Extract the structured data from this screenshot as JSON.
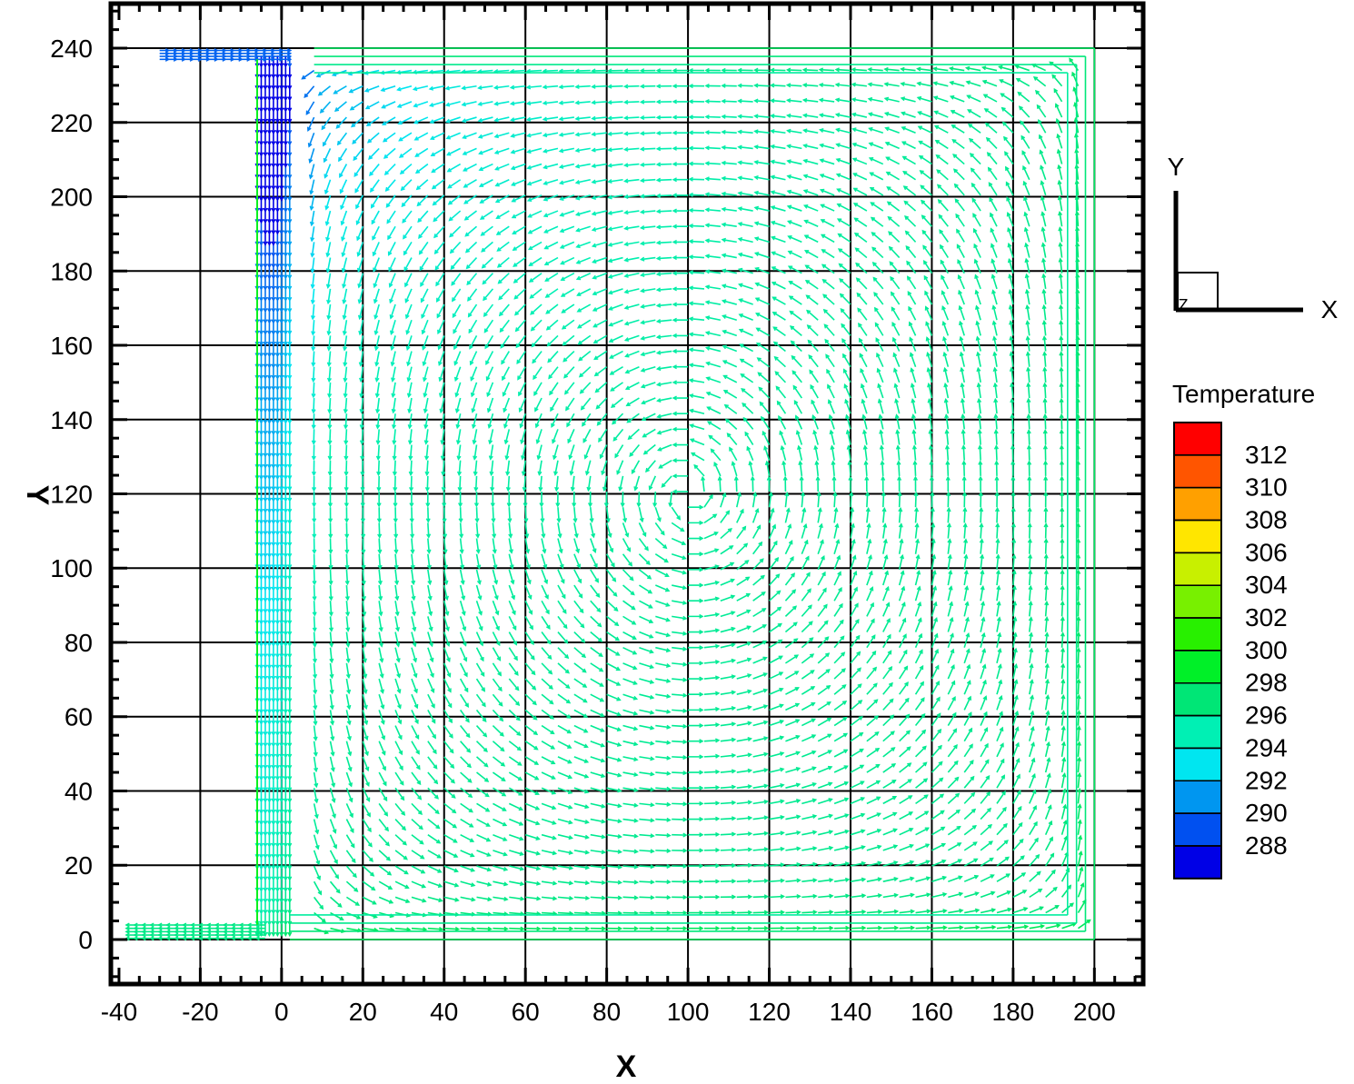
{
  "chart_data": {
    "type": "vector-field",
    "xlabel": "X",
    "ylabel": "Y",
    "xlim": [
      -42,
      212
    ],
    "ylim": [
      -12,
      252
    ],
    "grid": true,
    "x_ticks": [
      -40,
      -20,
      0,
      20,
      40,
      60,
      80,
      100,
      120,
      140,
      160,
      180,
      200
    ],
    "y_ticks": [
      0,
      20,
      40,
      60,
      80,
      100,
      120,
      140,
      160,
      180,
      200,
      220,
      240
    ],
    "x_tick_labels": [
      "-40",
      "-20",
      "0",
      "20",
      "40",
      "60",
      "80",
      "100",
      "120",
      "140",
      "160",
      "180",
      "200"
    ],
    "y_tick_labels": [
      "0",
      "20",
      "40",
      "60",
      "80",
      "100",
      "120",
      "140",
      "160",
      "180",
      "200",
      "220",
      "240"
    ],
    "domain_outline": [
      [
        -30,
        240
      ],
      [
        0,
        240
      ],
      [
        200,
        240
      ],
      [
        200,
        0
      ],
      [
        0,
        0
      ],
      [
        -36,
        0
      ]
    ],
    "inlet": {
      "x": [
        -30,
        0
      ],
      "y": [
        237,
        240
      ]
    },
    "outlet": {
      "x": [
        -36,
        0
      ],
      "y": [
        0,
        4
      ]
    },
    "flow_pattern": "clockwise-recirculation",
    "colorbar": {
      "title": "Temperature",
      "placement": "right",
      "levels": [
        {
          "value": 312,
          "color": "#ff0000"
        },
        {
          "value": 310,
          "color": "#ff5500"
        },
        {
          "value": 308,
          "color": "#ffa000"
        },
        {
          "value": 306,
          "color": "#ffe600"
        },
        {
          "value": 304,
          "color": "#c8f000"
        },
        {
          "value": 302,
          "color": "#78f000"
        },
        {
          "value": 300,
          "color": "#28f000"
        },
        {
          "value": 298,
          "color": "#00f028"
        },
        {
          "value": 296,
          "color": "#00e676"
        },
        {
          "value": 294,
          "color": "#00f0b4"
        },
        {
          "value": 292,
          "color": "#00e6f0"
        },
        {
          "value": 290,
          "color": "#0096f0"
        },
        {
          "value": 288,
          "color": "#0050f0"
        }
      ],
      "bottom_color": "#0000e6"
    },
    "axes_triad": {
      "x_label": "X",
      "y_label": "Y",
      "z_label": "Z"
    }
  }
}
